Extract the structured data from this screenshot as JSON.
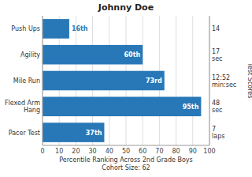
{
  "chart_data": {
    "type": "bar",
    "orientation": "horizontal",
    "title": "Johnny Doe",
    "xlabel": "Percentile Ranking Across 2nd Grade Boys\nCohort Size: 62",
    "y2label": "Test Scores",
    "categories": [
      "Push Ups",
      "Agility",
      "Mile Run",
      "Flexed Arm\nHang",
      "Pacer Test"
    ],
    "values": [
      16,
      60,
      73,
      95,
      37
    ],
    "data_labels": true,
    "value_labels": [
      "16th",
      "60th",
      "73rd",
      "95th",
      "37th"
    ],
    "y2_categories": [
      "14",
      "17\nsec",
      "12:52\nmin:sec",
      "48\nsec",
      "7\nlaps"
    ],
    "color": "#2878b8",
    "xlim": [
      0,
      100
    ],
    "xticks": [
      0,
      10,
      20,
      30,
      40,
      50,
      60,
      70,
      80,
      90,
      100
    ],
    "grid": true
  }
}
